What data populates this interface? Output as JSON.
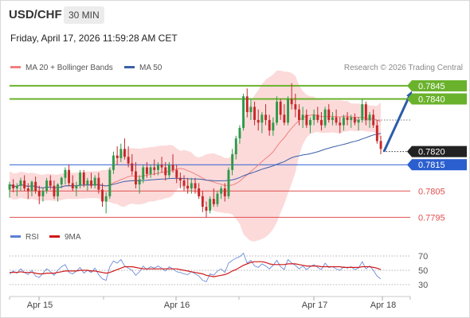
{
  "header": {
    "symbol": "USD/CHF",
    "timeframe": "30 MIN",
    "timestamp": "Friday, April 17, 2026 11:59:28 AM CET"
  },
  "legend": {
    "ma20_label": "MA 20 + Bollinger Bands",
    "ma50_label": "MA 50",
    "credit": "Research © 2026 Trading Central",
    "rsi_label": "RSI",
    "ma9_label": "9MA"
  },
  "colors": {
    "bull": "#2e9a48",
    "bear": "#c62828",
    "bollinger_fill": "#fbd3d3",
    "ma20": "#f08080",
    "ma50": "#3b5fa8",
    "resistance": "#6ab22c",
    "support_blue": "#2b5fcf",
    "support_red": "#e05050",
    "arrow": "#2a5caa",
    "rsi": "#5b7fd6",
    "rsi_ma": "#d01818"
  },
  "chart_data": {
    "type": "candlestick",
    "symbol": "USD/CHF",
    "timeframe": "30 MIN",
    "y_range": [
      0.7793,
      0.7848
    ],
    "x_ticks": [
      "Apr 15",
      "Apr 16",
      "Apr 17",
      "Apr 18"
    ],
    "candles": [
      [
        0.78055,
        0.78085,
        0.78025,
        0.78075
      ],
      [
        0.78075,
        0.78095,
        0.78045,
        0.7806
      ],
      [
        0.7806,
        0.7808,
        0.7803,
        0.7807
      ],
      [
        0.7807,
        0.781,
        0.7805,
        0.7809
      ],
      [
        0.7809,
        0.7811,
        0.7805,
        0.7806
      ],
      [
        0.7806,
        0.7808,
        0.7802,
        0.7805
      ],
      [
        0.7805,
        0.7809,
        0.7803,
        0.78085
      ],
      [
        0.78085,
        0.78105,
        0.7804,
        0.7805
      ],
      [
        0.7805,
        0.7807,
        0.78,
        0.7803
      ],
      [
        0.7803,
        0.7806,
        0.7801,
        0.7805
      ],
      [
        0.7805,
        0.781,
        0.7804,
        0.7809
      ],
      [
        0.7809,
        0.7811,
        0.78055,
        0.7807
      ],
      [
        0.7807,
        0.7809,
        0.7802,
        0.7803
      ],
      [
        0.7803,
        0.7808,
        0.7801,
        0.78075
      ],
      [
        0.78075,
        0.78105,
        0.7806,
        0.781
      ],
      [
        0.781,
        0.7814,
        0.78075,
        0.7813
      ],
      [
        0.7813,
        0.7815,
        0.7807,
        0.7808
      ],
      [
        0.7808,
        0.7811,
        0.7805,
        0.7806
      ],
      [
        0.7806,
        0.78085,
        0.7803,
        0.7807
      ],
      [
        0.7807,
        0.7813,
        0.7806,
        0.7812
      ],
      [
        0.7812,
        0.7813,
        0.78065,
        0.78075
      ],
      [
        0.78075,
        0.781,
        0.7805,
        0.7809
      ],
      [
        0.7809,
        0.7812,
        0.7806,
        0.7807
      ],
      [
        0.7807,
        0.7811,
        0.7806,
        0.781
      ],
      [
        0.781,
        0.7812,
        0.7804,
        0.78055
      ],
      [
        0.78055,
        0.7808,
        0.7799,
        0.7801
      ],
      [
        0.7801,
        0.78045,
        0.77965,
        0.7803
      ],
      [
        0.7803,
        0.7814,
        0.7802,
        0.7813
      ],
      [
        0.7813,
        0.782,
        0.78115,
        0.78185
      ],
      [
        0.78185,
        0.7822,
        0.7815,
        0.78175
      ],
      [
        0.78175,
        0.7823,
        0.7816,
        0.7821
      ],
      [
        0.7821,
        0.7825,
        0.7817,
        0.7818
      ],
      [
        0.7818,
        0.7822,
        0.7814,
        0.78155
      ],
      [
        0.78155,
        0.7819,
        0.7811,
        0.78125
      ],
      [
        0.78125,
        0.7816,
        0.7806,
        0.78075
      ],
      [
        0.78075,
        0.7811,
        0.7804,
        0.78095
      ],
      [
        0.78095,
        0.7815,
        0.7808,
        0.7814
      ],
      [
        0.7814,
        0.7816,
        0.781,
        0.78115
      ],
      [
        0.78115,
        0.7815,
        0.781,
        0.7814
      ],
      [
        0.7814,
        0.7817,
        0.7811,
        0.7813
      ],
      [
        0.7813,
        0.7816,
        0.7811,
        0.7815
      ],
      [
        0.7815,
        0.7818,
        0.7812,
        0.7814
      ],
      [
        0.7814,
        0.7816,
        0.7809,
        0.7811
      ],
      [
        0.7811,
        0.7816,
        0.781,
        0.7815
      ],
      [
        0.7815,
        0.7819,
        0.7812,
        0.7813
      ],
      [
        0.7813,
        0.7815,
        0.7808,
        0.781
      ],
      [
        0.781,
        0.7812,
        0.7806,
        0.7809
      ],
      [
        0.7809,
        0.7811,
        0.7805,
        0.7807
      ],
      [
        0.7807,
        0.781,
        0.7804,
        0.7806
      ],
      [
        0.7806,
        0.781,
        0.7804,
        0.7808
      ],
      [
        0.7808,
        0.781,
        0.7804,
        0.7806
      ],
      [
        0.7806,
        0.7808,
        0.7802,
        0.7803
      ],
      [
        0.7803,
        0.7805,
        0.7797,
        0.7799
      ],
      [
        0.7799,
        0.7801,
        0.7795,
        0.77975
      ],
      [
        0.77975,
        0.7803,
        0.77965,
        0.7802
      ],
      [
        0.7802,
        0.7806,
        0.7799,
        0.78
      ],
      [
        0.78,
        0.7805,
        0.7799,
        0.7804
      ],
      [
        0.7804,
        0.7807,
        0.7802,
        0.7806
      ],
      [
        0.7806,
        0.7808,
        0.7801,
        0.7803
      ],
      [
        0.7803,
        0.7814,
        0.7802,
        0.7813
      ],
      [
        0.7813,
        0.7821,
        0.7811,
        0.7819
      ],
      [
        0.7819,
        0.7826,
        0.7817,
        0.7825
      ],
      [
        0.7825,
        0.783,
        0.7823,
        0.7829
      ],
      [
        0.7829,
        0.7842,
        0.7828,
        0.7841
      ],
      [
        0.7841,
        0.7844,
        0.7833,
        0.7835
      ],
      [
        0.7835,
        0.784,
        0.7832,
        0.7837
      ],
      [
        0.7837,
        0.7839,
        0.783,
        0.7832
      ],
      [
        0.7832,
        0.7836,
        0.7828,
        0.7831
      ],
      [
        0.7831,
        0.7835,
        0.7827,
        0.7834
      ],
      [
        0.7834,
        0.7838,
        0.783,
        0.7832
      ],
      [
        0.7832,
        0.7834,
        0.7826,
        0.7828
      ],
      [
        0.7828,
        0.7833,
        0.7826,
        0.7831
      ],
      [
        0.7831,
        0.7841,
        0.783,
        0.7839
      ],
      [
        0.7839,
        0.784,
        0.7832,
        0.7834
      ],
      [
        0.7834,
        0.7838,
        0.783,
        0.7831
      ],
      [
        0.7831,
        0.7841,
        0.783,
        0.784
      ],
      [
        0.784,
        0.7846,
        0.7836,
        0.7838
      ],
      [
        0.7838,
        0.7842,
        0.7833,
        0.7836
      ],
      [
        0.7836,
        0.7838,
        0.783,
        0.7832
      ],
      [
        0.7832,
        0.7837,
        0.7829,
        0.7834
      ],
      [
        0.7834,
        0.7836,
        0.7829,
        0.783
      ],
      [
        0.783,
        0.7833,
        0.7827,
        0.7832
      ],
      [
        0.7832,
        0.7836,
        0.783,
        0.7834
      ],
      [
        0.7834,
        0.7837,
        0.7831,
        0.7832
      ],
      [
        0.7832,
        0.7835,
        0.7828,
        0.783
      ],
      [
        0.783,
        0.7837,
        0.7829,
        0.7836
      ],
      [
        0.7836,
        0.7838,
        0.7831,
        0.7832
      ],
      [
        0.7832,
        0.7835,
        0.783,
        0.7833
      ],
      [
        0.7833,
        0.7836,
        0.783,
        0.7831
      ],
      [
        0.7831,
        0.7833,
        0.7827,
        0.783
      ],
      [
        0.783,
        0.7834,
        0.7828,
        0.7833
      ],
      [
        0.7833,
        0.7835,
        0.783,
        0.7832
      ],
      [
        0.7832,
        0.7834,
        0.7829,
        0.7833
      ],
      [
        0.7833,
        0.78345,
        0.783,
        0.7831
      ],
      [
        0.7831,
        0.7833,
        0.7828,
        0.7832
      ],
      [
        0.7832,
        0.784,
        0.7831,
        0.7838
      ],
      [
        0.7838,
        0.7839,
        0.783,
        0.7832
      ],
      [
        0.7832,
        0.7835,
        0.7829,
        0.7834
      ],
      [
        0.7834,
        0.7836,
        0.7829,
        0.783
      ],
      [
        0.783,
        0.7832,
        0.7823,
        0.7824
      ],
      [
        0.7824,
        0.7826,
        0.7819,
        0.7821
      ]
    ],
    "current_price": 0.782,
    "levels": [
      {
        "label": "0.7845",
        "value": 0.7845,
        "kind": "resistance"
      },
      {
        "label": "0.7840",
        "value": 0.784,
        "kind": "resistance"
      },
      {
        "label": "0.7820",
        "value": 0.782,
        "kind": "current"
      },
      {
        "label": "0.7815",
        "value": 0.7815,
        "kind": "pivot"
      },
      {
        "label": "0.7805",
        "value": 0.7805,
        "kind": "support"
      },
      {
        "label": "0.7795",
        "value": 0.7795,
        "kind": "support"
      }
    ],
    "forecast_target": 0.7843,
    "rsi": {
      "range": [
        20,
        80
      ],
      "ticks": [
        "70",
        "50",
        "30"
      ],
      "values": [
        45,
        49,
        46,
        52,
        47,
        44,
        50,
        42,
        40,
        46,
        52,
        48,
        43,
        50,
        55,
        58,
        47,
        45,
        49,
        54,
        46,
        50,
        47,
        53,
        44,
        38,
        36,
        55,
        63,
        60,
        65,
        56,
        53,
        50,
        43,
        48,
        56,
        51,
        55,
        53,
        56,
        53,
        49,
        55,
        52,
        48,
        47,
        45,
        44,
        48,
        45,
        42,
        36,
        34,
        45,
        43,
        49,
        52,
        47,
        60,
        64,
        67,
        69,
        74,
        60,
        64,
        56,
        54,
        59,
        56,
        52,
        57,
        64,
        55,
        51,
        65,
        60,
        57,
        52,
        56,
        51,
        55,
        58,
        54,
        51,
        60,
        54,
        55,
        52,
        50,
        55,
        53,
        55,
        51,
        53,
        62,
        52,
        56,
        50,
        42,
        38
      ],
      "ma": [
        47,
        47,
        47,
        48,
        47,
        47,
        47,
        46,
        45,
        45,
        46,
        46,
        46,
        47,
        48,
        49,
        49,
        49,
        49,
        50,
        50,
        50,
        49,
        49,
        48,
        47,
        46,
        47,
        49,
        51,
        53,
        55,
        55,
        55,
        54,
        53,
        52,
        52,
        52,
        52,
        52,
        52,
        52,
        52,
        52,
        52,
        51,
        50,
        49,
        48,
        47,
        46,
        45,
        43,
        42,
        41,
        42,
        43,
        44,
        46,
        49,
        51,
        54,
        57,
        59,
        61,
        62,
        62,
        62,
        61,
        59,
        58,
        58,
        58,
        58,
        59,
        59,
        59,
        58,
        57,
        56,
        56,
        56,
        56,
        55,
        55,
        55,
        55,
        55,
        55,
        54,
        54,
        54,
        54,
        54,
        55,
        55,
        55,
        54,
        53,
        51
      ]
    }
  }
}
